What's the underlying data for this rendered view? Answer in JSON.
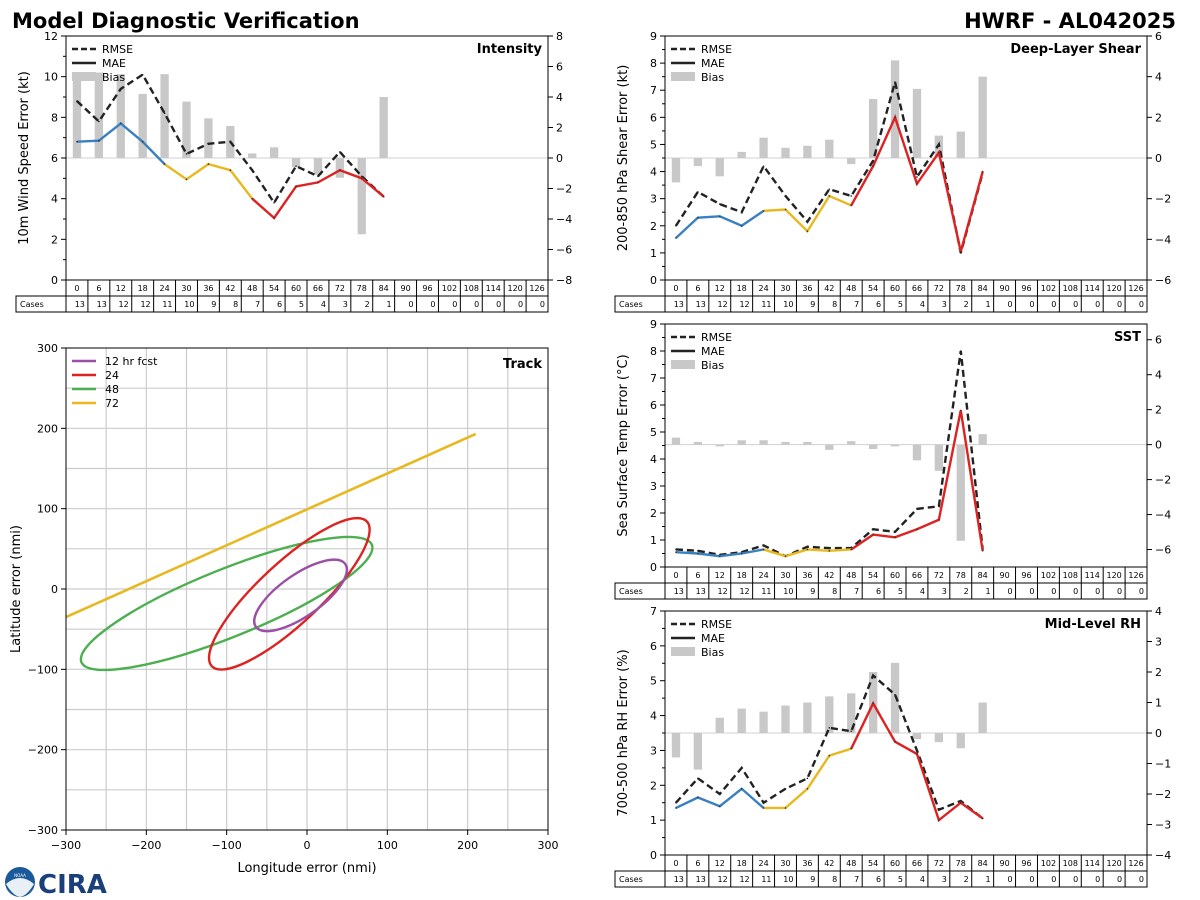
{
  "header": {
    "title": "Model Diagnostic Verification",
    "storm": "HWRF - AL042025"
  },
  "colors": {
    "rmse": "#222222",
    "mae_early": "#3a7fc0",
    "mae_mid": "#e8b820",
    "mae_late": "#dd2222",
    "bias": "#c8c8c8",
    "fcst12": "#9b4fa5",
    "fcst24": "#dd2222",
    "fcst48": "#4caf50",
    "fcst72": "#e8b820",
    "grid": "#cccccc"
  },
  "logo": {
    "noaa_text": "NOAA",
    "cira_text": "CIRA"
  },
  "lead_hours": [
    "0",
    "6",
    "12",
    "18",
    "24",
    "30",
    "36",
    "42",
    "48",
    "54",
    "60",
    "66",
    "72",
    "78",
    "84",
    "90",
    "96",
    "102",
    "108",
    "114",
    "120",
    "126"
  ],
  "cases_label": "Cases",
  "cases": [
    "13",
    "13",
    "12",
    "12",
    "11",
    "10",
    "9",
    "8",
    "7",
    "6",
    "5",
    "4",
    "3",
    "2",
    "1",
    "0",
    "0",
    "0",
    "0",
    "0",
    "0",
    "0"
  ],
  "chart_data": [
    {
      "id": "intensity",
      "type": "line",
      "title": "Intensity",
      "ylabel": "10m Wind Speed Error (kt)",
      "ylim": [
        0,
        12
      ],
      "yticks": [
        "0",
        "2",
        "4",
        "6",
        "8",
        "10",
        "12"
      ],
      "y2lim": [
        -8,
        8
      ],
      "y2ticks": [
        "−8",
        "−6",
        "−4",
        "−2",
        "0",
        "2",
        "4",
        "6",
        "8"
      ],
      "legend": [
        "RMSE",
        "MAE",
        "Bias"
      ],
      "rmse": [
        8.8,
        7.8,
        9.4,
        10.1,
        8.2,
        6.2,
        6.7,
        6.8,
        5.4,
        3.8,
        5.6,
        5.1,
        6.3,
        5.1,
        4.1
      ],
      "mae": [
        6.8,
        6.85,
        7.7,
        6.8,
        5.7,
        4.95,
        5.7,
        5.4,
        4.0,
        3.05,
        4.6,
        4.8,
        5.4,
        5.0,
        4.1
      ],
      "bias": [
        5.5,
        5.6,
        5.5,
        4.2,
        5.5,
        3.7,
        2.6,
        2.1,
        0.3,
        0.7,
        -0.6,
        -1.1,
        -1.3,
        -5.0,
        4.0
      ]
    },
    {
      "id": "shear",
      "type": "line",
      "title": "Deep-Layer Shear",
      "ylabel": "200-850 hPa Shear Error (kt)",
      "ylim": [
        0,
        9
      ],
      "yticks": [
        "0",
        "1",
        "2",
        "3",
        "4",
        "5",
        "6",
        "7",
        "8",
        "9"
      ],
      "y2lim": [
        -6,
        6
      ],
      "y2ticks": [
        "−6",
        "−4",
        "−2",
        "0",
        "2",
        "4",
        "6"
      ],
      "legend": [
        "RMSE",
        "MAE",
        "Bias"
      ],
      "rmse": [
        2.0,
        3.25,
        2.8,
        2.5,
        4.2,
        3.1,
        2.15,
        3.35,
        3.1,
        4.4,
        7.3,
        3.8,
        5.0,
        1.0,
        3.95
      ],
      "mae": [
        1.55,
        2.3,
        2.35,
        2.0,
        2.55,
        2.6,
        1.8,
        3.1,
        2.75,
        4.2,
        6.0,
        3.55,
        4.7,
        1.05,
        4.0
      ],
      "bias": [
        -1.2,
        -0.4,
        -0.9,
        0.3,
        1.0,
        0.5,
        0.6,
        0.9,
        -0.3,
        2.9,
        4.8,
        3.4,
        1.1,
        1.3,
        4.0
      ]
    },
    {
      "id": "sst",
      "type": "line",
      "title": "SST",
      "ylabel": "Sea Surface Temp Error (°C)",
      "ylim": [
        0,
        9
      ],
      "yticks": [
        "0",
        "1",
        "2",
        "3",
        "4",
        "5",
        "6",
        "7",
        "8",
        "9"
      ],
      "y2lim": [
        -7,
        6.9
      ],
      "y2ticks": [
        "−6",
        "−4",
        "−2",
        "0",
        "2",
        "4",
        "6"
      ],
      "legend": [
        "RMSE",
        "MAE",
        "Bias"
      ],
      "rmse": [
        0.65,
        0.6,
        0.45,
        0.55,
        0.8,
        0.4,
        0.75,
        0.7,
        0.7,
        1.4,
        1.3,
        2.15,
        2.25,
        8.0,
        0.65
      ],
      "mae": [
        0.55,
        0.5,
        0.4,
        0.5,
        0.65,
        0.4,
        0.65,
        0.6,
        0.65,
        1.2,
        1.1,
        1.4,
        1.75,
        5.8,
        0.6
      ],
      "bias": [
        0.4,
        0.15,
        -0.1,
        0.25,
        0.25,
        0.15,
        0.15,
        -0.3,
        0.2,
        -0.25,
        -0.1,
        -0.9,
        -1.5,
        -5.5,
        0.6
      ]
    },
    {
      "id": "rh",
      "type": "line",
      "title": "Mid-Level RH",
      "ylabel": "700-500 hPa RH Error (%)",
      "ylim": [
        0,
        7
      ],
      "yticks": [
        "0",
        "1",
        "2",
        "3",
        "4",
        "5",
        "6",
        "7"
      ],
      "y2lim": [
        -4,
        4
      ],
      "y2ticks": [
        "−4",
        "−3",
        "−2",
        "−1",
        "0",
        "1",
        "2",
        "3",
        "4"
      ],
      "legend": [
        "RMSE",
        "MAE",
        "Bias"
      ],
      "rmse": [
        1.5,
        2.2,
        1.75,
        2.5,
        1.5,
        1.9,
        2.2,
        3.65,
        3.55,
        5.15,
        4.6,
        3.0,
        1.3,
        1.55,
        1.05
      ],
      "mae": [
        1.35,
        1.65,
        1.4,
        1.9,
        1.35,
        1.35,
        1.9,
        2.85,
        3.05,
        4.35,
        3.25,
        2.9,
        1.0,
        1.5,
        1.05
      ],
      "bias": [
        -0.8,
        -1.2,
        0.5,
        0.8,
        0.7,
        0.9,
        1.0,
        1.2,
        1.3,
        2.0,
        2.3,
        -0.2,
        -0.3,
        -0.5,
        1.0
      ]
    },
    {
      "id": "track",
      "type": "scatter",
      "title": "Track",
      "xlabel": "Longitude error (nmi)",
      "ylabel": "Latitude error (nmi)",
      "xlim": [
        -300,
        300
      ],
      "ylim": [
        -300,
        300
      ],
      "xticks": [
        "−300",
        "−200",
        "−100",
        "0",
        "100",
        "200",
        "300"
      ],
      "yticks": [
        "−300",
        "−200",
        "−100",
        "0",
        "100",
        "200",
        "300"
      ],
      "ellipses": [
        {
          "name": "12 hr fcst",
          "cx": -8,
          "cy": -8,
          "rx": 68,
          "ry": 26,
          "angle": 35
        },
        {
          "name": "24",
          "cx": -22,
          "cy": -6,
          "rx": 132,
          "ry": 38,
          "angle": 43
        },
        {
          "name": "48",
          "cx": -100,
          "cy": -18,
          "rx": 195,
          "ry": 42,
          "angle": 22
        }
      ],
      "line72": {
        "name": "72",
        "x": [
          -300,
          210
        ],
        "y": [
          -35,
          193
        ]
      }
    }
  ]
}
